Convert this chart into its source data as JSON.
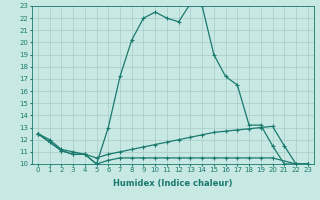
{
  "title": "",
  "xlabel": "Humidex (Indice chaleur)",
  "xlim": [
    -0.5,
    23.5
  ],
  "ylim": [
    10,
    23
  ],
  "yticks": [
    10,
    11,
    12,
    13,
    14,
    15,
    16,
    17,
    18,
    19,
    20,
    21,
    22,
    23
  ],
  "xticks": [
    0,
    1,
    2,
    3,
    4,
    5,
    6,
    7,
    8,
    9,
    10,
    11,
    12,
    13,
    14,
    15,
    16,
    17,
    18,
    19,
    20,
    21,
    22,
    23
  ],
  "line_color": "#1a7a6e",
  "bg_color": "#c8e8e4",
  "grid_color": "#a8ccc8",
  "line1_x": [
    0,
    1,
    2,
    3,
    4,
    5,
    6,
    7,
    8,
    9,
    10,
    11,
    12,
    13,
    14,
    15,
    16,
    17,
    18,
    19,
    20,
    21,
    22,
    23
  ],
  "line1_y": [
    12.5,
    12.0,
    11.2,
    11.0,
    10.8,
    10.0,
    13.0,
    17.2,
    20.2,
    22.0,
    22.5,
    22.0,
    21.7,
    23.2,
    23.0,
    19.0,
    17.2,
    16.5,
    13.2,
    13.2,
    11.5,
    10.0,
    10.0,
    10.0
  ],
  "line2_x": [
    0,
    1,
    2,
    3,
    4,
    5,
    6,
    7,
    8,
    9,
    10,
    11,
    12,
    13,
    14,
    15,
    16,
    17,
    18,
    19,
    20,
    21,
    22,
    23
  ],
  "line2_y": [
    12.5,
    11.8,
    11.1,
    10.8,
    10.8,
    10.5,
    10.8,
    11.0,
    11.2,
    11.4,
    11.6,
    11.8,
    12.0,
    12.2,
    12.4,
    12.6,
    12.7,
    12.8,
    12.9,
    13.0,
    13.1,
    11.5,
    10.0,
    10.0
  ],
  "line3_x": [
    0,
    2,
    3,
    4,
    5,
    6,
    7,
    8,
    9,
    10,
    11,
    12,
    13,
    14,
    15,
    16,
    17,
    18,
    19,
    20,
    22,
    23
  ],
  "line3_y": [
    12.5,
    11.1,
    10.8,
    10.8,
    10.0,
    10.3,
    10.5,
    10.5,
    10.5,
    10.5,
    10.5,
    10.5,
    10.5,
    10.5,
    10.5,
    10.5,
    10.5,
    10.5,
    10.5,
    10.5,
    10.0,
    10.0
  ],
  "marker": "+",
  "markersize": 3,
  "linewidth": 0.9,
  "axis_fontsize": 6,
  "tick_fontsize": 5
}
